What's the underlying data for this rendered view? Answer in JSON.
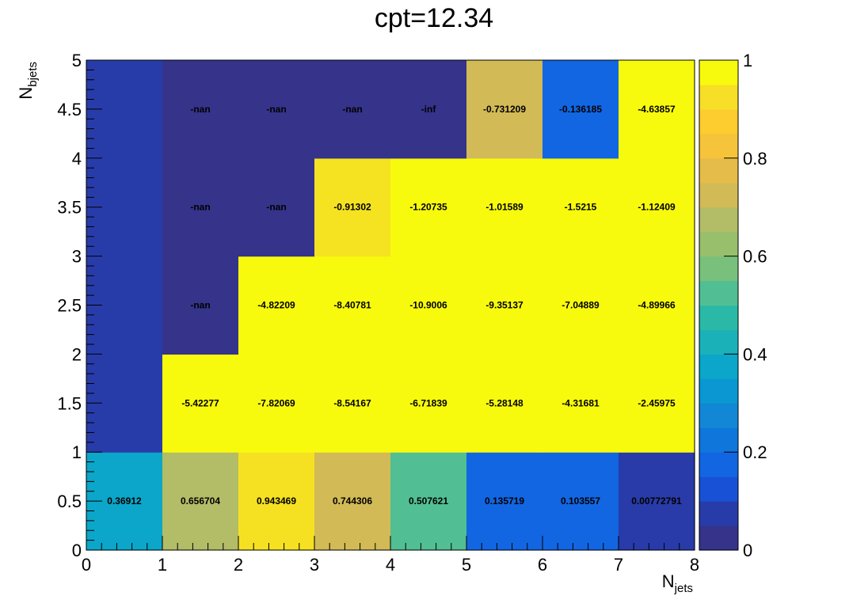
{
  "title": "cpt=12.34",
  "chart_data": {
    "type": "heatmap",
    "title": "cpt=12.34",
    "xlabel": {
      "main": "N",
      "sub": "jets"
    },
    "ylabel": {
      "main": "N",
      "sub": "bjets"
    },
    "xlim": [
      0,
      8
    ],
    "ylim": [
      0,
      5
    ],
    "x_bin_edges": [
      0,
      1,
      2,
      3,
      4,
      5,
      6,
      7,
      8
    ],
    "y_bin_edges": [
      0,
      1,
      2,
      3,
      4,
      5
    ],
    "x_ticks": [
      "0",
      "1",
      "2",
      "3",
      "4",
      "5",
      "6",
      "7",
      "8"
    ],
    "y_ticks": [
      "0",
      "0.5",
      "1",
      "1.5",
      "2",
      "2.5",
      "3",
      "3.5",
      "4",
      "4.5",
      "5"
    ],
    "colorbar": {
      "min": 0,
      "max": 1,
      "ticks": [
        "0",
        "0.2",
        "0.4",
        "0.6",
        "0.8",
        "1"
      ]
    },
    "rows": [
      {
        "y_bin": "0-1",
        "values": [
          0.36912,
          0.656704,
          0.943469,
          0.744306,
          0.507621,
          0.135719,
          0.103557,
          0.00772791
        ],
        "labels": [
          "0.36912",
          "0.656704",
          "0.943469",
          "0.744306",
          "0.507621",
          "0.135719",
          "0.103557",
          "0.00772791"
        ]
      },
      {
        "y_bin": "1-2",
        "values": [
          0.05,
          -5.42277,
          -7.82069,
          -8.54167,
          -6.71839,
          -5.28148,
          -4.31681,
          -2.45975
        ],
        "labels": [
          "",
          "-5.42277",
          "-7.82069",
          "-8.54167",
          "-6.71839",
          "-5.28148",
          "-4.31681",
          "-2.45975"
        ]
      },
      {
        "y_bin": "2-3",
        "values": [
          0.05,
          null,
          -4.82209,
          -8.40781,
          -10.9006,
          -9.35137,
          -7.04889,
          -4.89966
        ],
        "labels": [
          "",
          "-nan",
          "-4.82209",
          "-8.40781",
          "-10.9006",
          "-9.35137",
          "-7.04889",
          "-4.89966"
        ]
      },
      {
        "y_bin": "3-4",
        "values": [
          0.05,
          null,
          null,
          -0.91302,
          -1.20735,
          -1.01589,
          -1.5215,
          -1.12409
        ],
        "labels": [
          "",
          "-nan",
          "-nan",
          "-0.91302",
          "-1.20735",
          "-1.01589",
          "-1.5215",
          "-1.12409"
        ]
      },
      {
        "y_bin": "4-5",
        "values": [
          0.05,
          null,
          null,
          null,
          null,
          -0.731209,
          -0.136185,
          -4.63857
        ],
        "labels": [
          "",
          "-nan",
          "-nan",
          "-nan",
          "-inf",
          "-0.731209",
          "-0.136185",
          "-4.63857"
        ]
      }
    ],
    "cell_colors": [
      [
        "#0ba6c9",
        "#b3bc67",
        "#f5e121",
        "#d2ba56",
        "#51bf93",
        "#1266e2",
        "#1266e2",
        "#293ba8"
      ],
      [
        "#283ca9",
        "#f8fa0d",
        "#f8fa0d",
        "#f8fa0d",
        "#f8fa0d",
        "#f8fa0d",
        "#f8fa0d",
        "#f8fa0d"
      ],
      [
        "#283ca9",
        "#35338a",
        "#f8fa0d",
        "#f8fa0d",
        "#f8fa0d",
        "#f8fa0d",
        "#f8fa0d",
        "#f8fa0d"
      ],
      [
        "#283ca9",
        "#35338a",
        "#35338a",
        "#f5e322",
        "#f8fa0d",
        "#f8fa0d",
        "#f8fa0d",
        "#f8fa0d"
      ],
      [
        "#283ca9",
        "#35338a",
        "#35338a",
        "#35338a",
        "#35338a",
        "#d2ba56",
        "#1266e2",
        "#f8fa0d"
      ]
    ],
    "palette": [
      "#35338a",
      "#283ca9",
      "#1851d5",
      "#1266e2",
      "#0f76dc",
      "#1287d6",
      "#0a97d2",
      "#0ba6c9",
      "#1bb1b9",
      "#2ab9a6",
      "#51bf93",
      "#78c07c",
      "#97bf6c",
      "#b3bc67",
      "#d2ba56",
      "#e5bc49",
      "#f5c43a",
      "#fdcc2f",
      "#f6df26",
      "#f8fa0d"
    ],
    "grid": false,
    "legend": "none"
  }
}
